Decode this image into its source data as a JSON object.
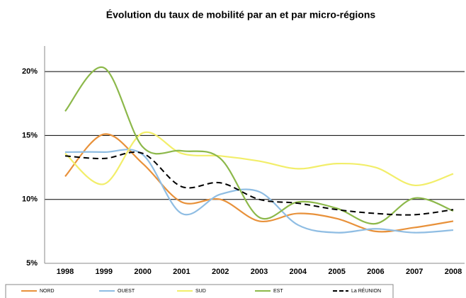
{
  "chart_data": {
    "type": "line",
    "title": "Évolution du taux de mobilité par an et par micro-régions",
    "categories": [
      "1998",
      "1999",
      "2000",
      "2001",
      "2002",
      "2003",
      "2004",
      "2005",
      "2006",
      "2007",
      "2008"
    ],
    "series": [
      {
        "name": "NORD",
        "color": "#e8913a",
        "dash": false,
        "values": [
          11.8,
          15.1,
          12.8,
          9.8,
          10.0,
          8.3,
          8.9,
          8.5,
          7.5,
          7.8,
          8.3
        ]
      },
      {
        "name": "OUEST",
        "color": "#8fbde3",
        "dash": false,
        "values": [
          13.7,
          13.7,
          13.5,
          8.9,
          10.4,
          10.6,
          8.0,
          7.4,
          7.7,
          7.4,
          7.6
        ]
      },
      {
        "name": "SUD",
        "color": "#f2ee6a",
        "dash": false,
        "values": [
          13.6,
          11.2,
          15.2,
          13.6,
          13.4,
          13.0,
          12.4,
          12.8,
          12.5,
          11.1,
          12.0
        ]
      },
      {
        "name": "EST",
        "color": "#8cb84a",
        "dash": false,
        "values": [
          16.9,
          20.3,
          14.1,
          13.8,
          13.2,
          8.6,
          9.8,
          9.3,
          8.1,
          10.1,
          9.1
        ]
      },
      {
        "name": "La RÉUNION",
        "color": "#000000",
        "dash": true,
        "values": [
          13.4,
          13.2,
          13.6,
          11.0,
          11.3,
          10.0,
          9.7,
          9.2,
          8.9,
          8.8,
          9.2
        ]
      }
    ],
    "ylim": [
      5,
      22
    ],
    "yticks": [
      {
        "value": 5,
        "label": "5%"
      },
      {
        "value": 10,
        "label": "10%"
      },
      {
        "value": 15,
        "label": "15%"
      },
      {
        "value": 20,
        "label": "20%"
      }
    ],
    "grid": true,
    "legend": "bottom"
  }
}
